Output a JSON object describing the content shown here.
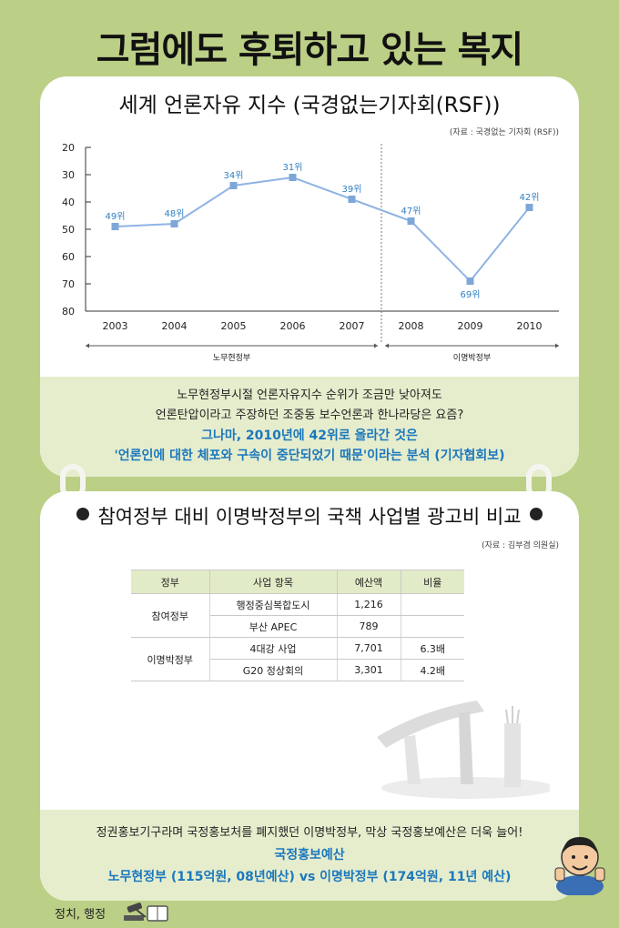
{
  "header": {
    "title": "그럼에도 후퇴하고 있는 복지"
  },
  "chart_data": {
    "type": "line",
    "title": "세계 언론자유 지수 (국경없는기자회(RSF))",
    "source": "(자료 : 국경없는 기자회 (RSF))",
    "categories": [
      "2003",
      "2004",
      "2005",
      "2006",
      "2007",
      "2008",
      "2009",
      "2010"
    ],
    "series": [
      {
        "values": [
          49,
          48,
          34,
          31,
          39,
          47,
          69,
          42
        ],
        "labels": [
          "49위",
          "48위",
          "34위",
          "31위",
          "39위",
          "47위",
          "69위",
          "42위"
        ]
      }
    ],
    "y_ticks": [
      "20",
      "30",
      "40",
      "50",
      "60",
      "70",
      "80"
    ],
    "ylim": [
      20,
      80
    ],
    "y_inverted": true,
    "line_color": "#8fb4e3",
    "marker_color": "#7ea7d8",
    "eras": [
      {
        "label": "노무현정부",
        "from": "2003",
        "to": "2007"
      },
      {
        "label": "이명박정부",
        "from": "2008",
        "to": "2010"
      }
    ],
    "grid": false
  },
  "chart_caption": {
    "line1": "노무현정부시절 언론자유지수 순위가 조금만 낮아져도",
    "line2": "언론탄압이라고 주장하던 조중동 보수언론과 한나라당은 요즘?",
    "highlight1": "그나마, 2010년에 42위로 올라간 것은",
    "highlight2": "'언론인에 대한 체포와 구속이 중단되었기 때문'이라는 분석 (기자협회보)"
  },
  "budget_table": {
    "title": "참여정부 대비 이명박정부의 국책 사업별 광고비 비교",
    "source": "(자료 : 김부겸 의원실)",
    "headers": [
      "정부",
      "사업 항목",
      "예산액",
      "비율"
    ],
    "groups": [
      {
        "government": "참여정부",
        "rows": [
          {
            "item": "행정중심복합도시",
            "amount": "1,216",
            "ratio": ""
          },
          {
            "item": "부산 APEC",
            "amount": "789",
            "ratio": ""
          }
        ]
      },
      {
        "government": "이명박정부",
        "rows": [
          {
            "item": "4대강 사업",
            "amount": "7,701",
            "ratio": "6.3배"
          },
          {
            "item": "G20 정상회의",
            "amount": "3,301",
            "ratio": "4.2배"
          }
        ]
      }
    ]
  },
  "bottom_caption": {
    "line1": "정권홍보기구라며 국정홍보처를 폐지했던 이명박정부, 막상 국정홍보예산은 더욱 늘어!",
    "highlight1": "국정홍보예산",
    "highlight2": "노무현정부 (115억원, 08년예산) vs 이명박정부 (174억원, 11년 예산)"
  },
  "footer": {
    "category": "정치, 행정"
  },
  "colors": {
    "background": "#bccf86",
    "band": "#e6edcd",
    "accent": "#1b78bd"
  }
}
